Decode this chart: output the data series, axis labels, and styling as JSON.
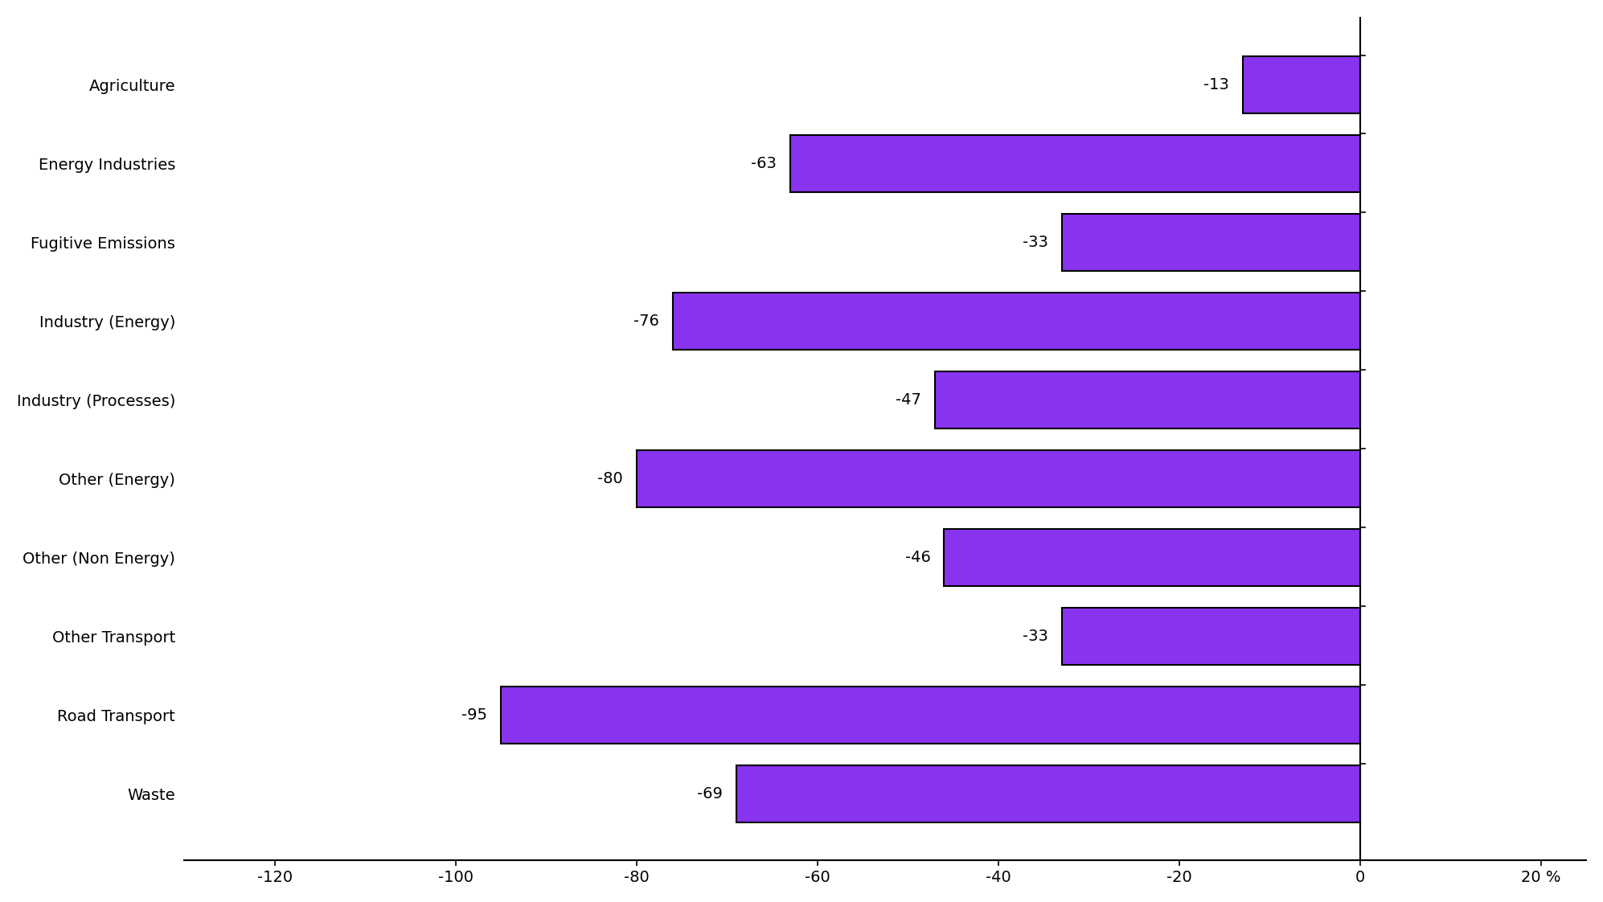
{
  "categories": [
    "Agriculture",
    "Energy Industries",
    "Fugitive Emissions",
    "Industry (Energy)",
    "Industry (Processes)",
    "Other (Energy)",
    "Other (Non Energy)",
    "Other Transport",
    "Road Transport",
    "Waste"
  ],
  "values": [
    -13,
    -63,
    -33,
    -76,
    -47,
    -80,
    -46,
    -33,
    -95,
    -69
  ],
  "bar_color": "#8833EE",
  "bar_edgecolor": "#000000",
  "bar_linewidth": 1.5,
  "label_color": "#000000",
  "xlim": [
    -130,
    25
  ],
  "xticks": [
    -120,
    -100,
    -80,
    -60,
    -40,
    -20,
    0,
    20
  ],
  "xtick_labels": [
    "-120",
    "-100",
    "-80",
    "-60",
    "-40",
    "-20",
    "0",
    "20 %"
  ],
  "bar_height": 0.72,
  "figure_bg": "#ffffff",
  "axes_bg": "#ffffff",
  "spine_color": "#000000",
  "ylabel_fontsize": 14,
  "tick_fontsize": 14,
  "value_fontsize": 14
}
